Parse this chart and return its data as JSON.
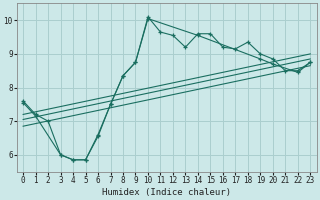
{
  "xlabel": "Humidex (Indice chaleur)",
  "bg_color": "#cce8e8",
  "grid_color": "#aacece",
  "line_color": "#1a6e60",
  "xlim": [
    -0.5,
    23.5
  ],
  "ylim": [
    5.5,
    10.5
  ],
  "yticks": [
    6,
    7,
    8,
    9,
    10
  ],
  "xticks": [
    0,
    1,
    2,
    3,
    4,
    5,
    6,
    7,
    8,
    9,
    10,
    11,
    12,
    13,
    14,
    15,
    16,
    17,
    18,
    19,
    20,
    21,
    22,
    23
  ],
  "series": [
    {
      "x": [
        0,
        1,
        2,
        3,
        4,
        5,
        6,
        7,
        8,
        9,
        10,
        11,
        12,
        13,
        14,
        15,
        16,
        17,
        18,
        19,
        20,
        21,
        22,
        23
      ],
      "y": [
        7.6,
        7.2,
        7.0,
        6.0,
        5.85,
        5.85,
        6.6,
        7.5,
        8.35,
        8.75,
        10.1,
        9.65,
        9.55,
        9.2,
        9.6,
        9.6,
        9.2,
        9.15,
        9.35,
        9.0,
        8.85,
        8.5,
        8.5,
        8.75
      ],
      "markers": true
    },
    {
      "x": [
        0,
        1,
        3,
        4,
        5,
        6,
        7,
        8,
        9,
        10,
        14,
        19,
        20,
        22,
        23
      ],
      "y": [
        7.55,
        7.15,
        6.0,
        5.85,
        5.85,
        6.55,
        7.5,
        8.35,
        8.75,
        10.05,
        9.55,
        8.85,
        8.7,
        8.45,
        8.75
      ],
      "markers": true
    },
    {
      "x": [
        0,
        23
      ],
      "y": [
        7.05,
        8.85
      ],
      "markers": false
    },
    {
      "x": [
        0,
        23
      ],
      "y": [
        7.2,
        9.0
      ],
      "markers": false
    },
    {
      "x": [
        0,
        23
      ],
      "y": [
        6.85,
        8.65
      ],
      "markers": false
    }
  ]
}
